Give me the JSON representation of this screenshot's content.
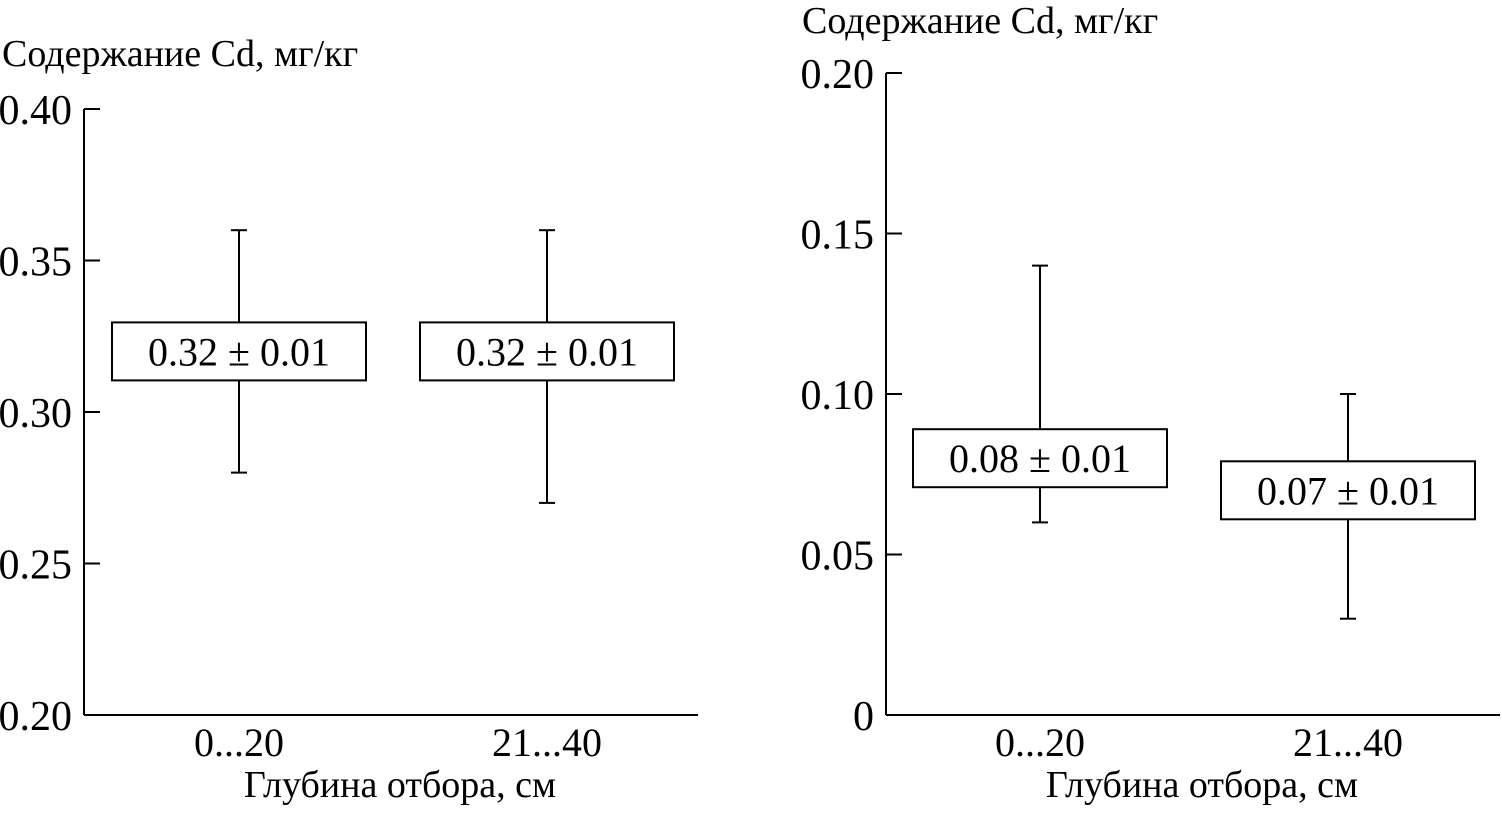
{
  "chart_data": [
    {
      "type": "box",
      "title": "",
      "ylabel": "Содержание Cd, мг/кг",
      "xlabel": "Глубина отбора, см",
      "ylim": [
        0.2,
        0.4
      ],
      "yticks": [
        0.2,
        0.25,
        0.3,
        0.35,
        0.4
      ],
      "ytick_labels": [
        "0.20",
        "0.25",
        "0.30",
        "0.35",
        "0.40"
      ],
      "categories": [
        "0...20",
        "21...40"
      ],
      "boxes": [
        {
          "box_low": 0.31,
          "box_high": 0.33,
          "whisker_low": 0.28,
          "whisker_high": 0.36,
          "label": "0.32 ± 0.01"
        },
        {
          "box_low": 0.31,
          "box_high": 0.33,
          "whisker_low": 0.27,
          "whisker_high": 0.36,
          "label": "0.32 ± 0.01"
        }
      ],
      "grid": false
    },
    {
      "type": "box",
      "title": "",
      "ylabel": "Содержание Cd, мг/кг",
      "xlabel": "Глубина отбора, см",
      "ylim": [
        0,
        0.2
      ],
      "yticks": [
        0,
        0.05,
        0.1,
        0.15,
        0.2
      ],
      "ytick_labels": [
        "0",
        "0.05",
        "0.10",
        "0.15",
        "0.20"
      ],
      "categories": [
        "0...20",
        "21...40"
      ],
      "boxes": [
        {
          "box_low": 0.071,
          "box_high": 0.089,
          "whisker_low": 0.06,
          "whisker_high": 0.14,
          "label": "0.08 ± 0.01"
        },
        {
          "box_low": 0.061,
          "box_high": 0.079,
          "whisker_low": 0.03,
          "whisker_high": 0.1,
          "label": "0.07 ± 0.01"
        }
      ],
      "grid": false
    }
  ]
}
